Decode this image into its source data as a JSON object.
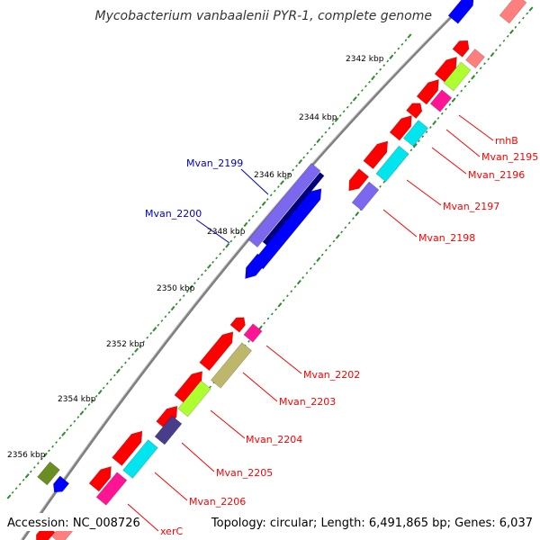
{
  "title": "Mycobacterium vanbaalenii PYR-1, complete genome",
  "footer": {
    "accession": "Accession: NC_008726",
    "summary": "Topology: circular; Length: 6,491,865 bp; Genes: 6,037"
  },
  "colors": {
    "backbone": "#808080",
    "tick": "#2e8b2e",
    "red": "#ff0000",
    "blue": "#0000ff",
    "navy": "#000080",
    "slate": "#7b68ee",
    "cyan": "#00e5ee",
    "magenta": "#ff1493",
    "pink": "#ff7f7f",
    "lime": "#adff2f",
    "khaki": "#bdb76b",
    "olive": "#6b8e23",
    "indigo": "#483d8b",
    "label_red": "#ff0000",
    "label_blue": "#0000cc"
  },
  "scale_labels": [
    "2342 kbp",
    "2344 kbp",
    "2346 kbp",
    "2348 kbp",
    "2350 kbp",
    "2352 kbp",
    "2354 kbp",
    "2356 kbp"
  ],
  "gene_labels": [
    {
      "text": "rnhB",
      "color": "red"
    },
    {
      "text": "Mvan_2195",
      "color": "red"
    },
    {
      "text": "Mvan_2196",
      "color": "red"
    },
    {
      "text": "Mvan_2197",
      "color": "red"
    },
    {
      "text": "Mvan_2198",
      "color": "red"
    },
    {
      "text": "Mvan_2199",
      "color": "blue"
    },
    {
      "text": "Mvan_2200",
      "color": "blue"
    },
    {
      "text": "Mvan_2202",
      "color": "red"
    },
    {
      "text": "Mvan_2203",
      "color": "red"
    },
    {
      "text": "Mvan_2204",
      "color": "red"
    },
    {
      "text": "Mvan_2205",
      "color": "red"
    },
    {
      "text": "Mvan_2206",
      "color": "red"
    },
    {
      "text": "xerC",
      "color": "red"
    }
  ]
}
